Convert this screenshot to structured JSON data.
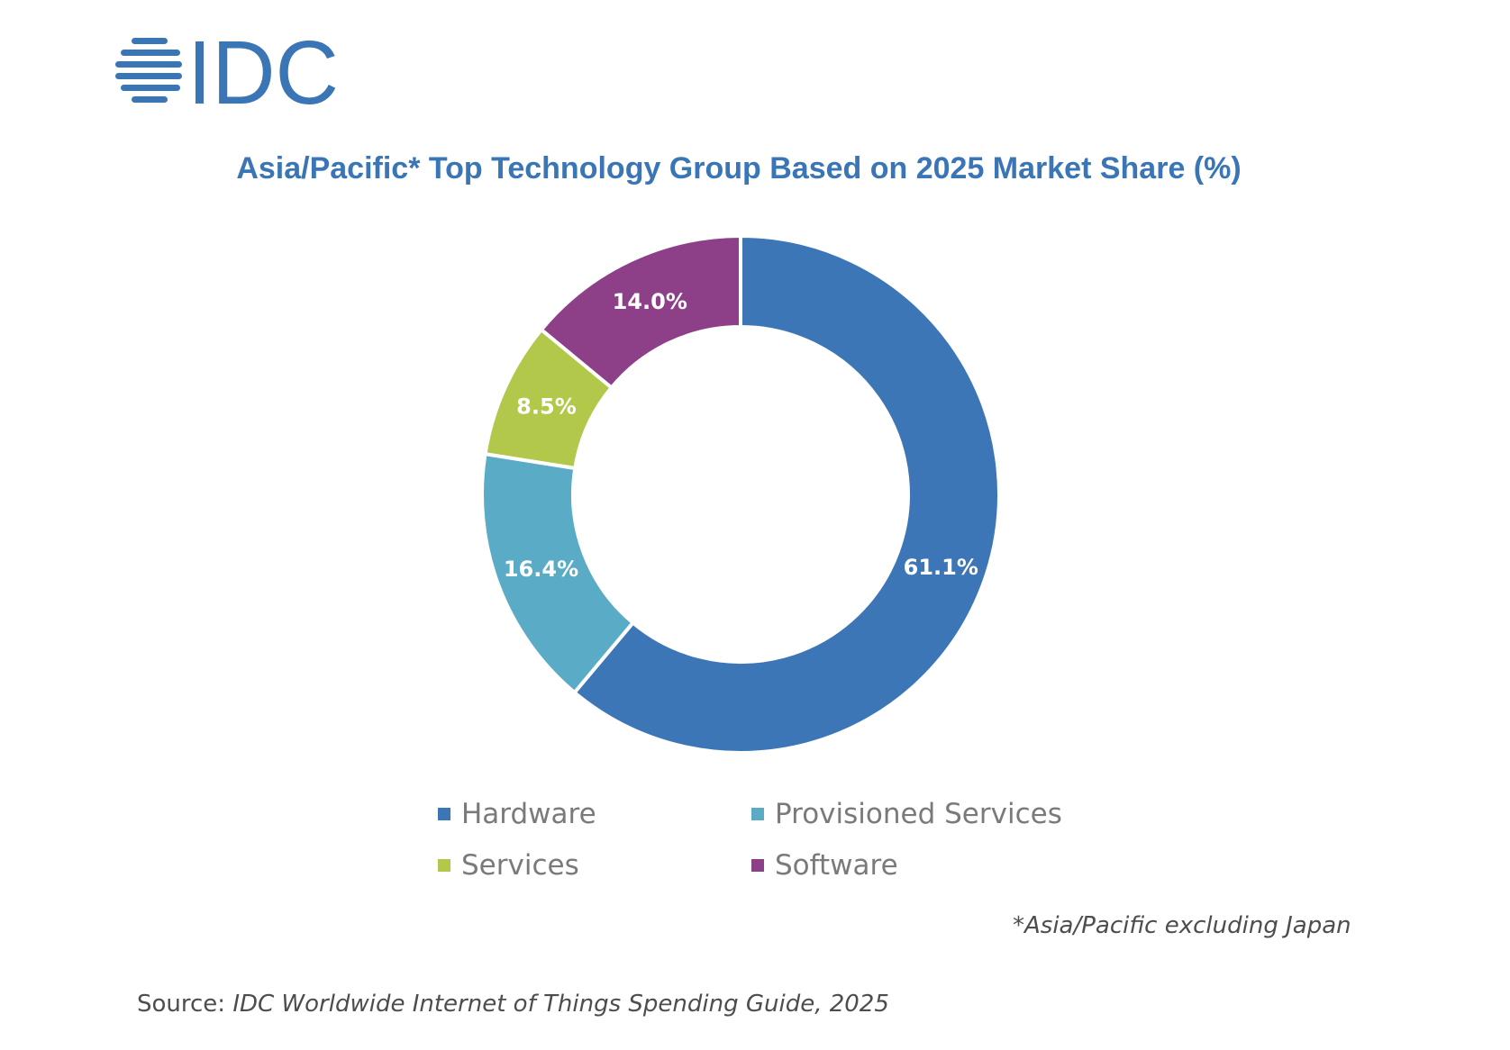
{
  "logo": {
    "text": "IDC",
    "color": "#3a75b5"
  },
  "chart_data": {
    "type": "pie",
    "variant": "donut",
    "title": "Asia/Pacific* Top Technology Group Based on 2025 Market Share (%)",
    "categories": [
      "Hardware",
      "Provisioned Services",
      "Services",
      "Software"
    ],
    "values": [
      61.1,
      16.4,
      8.5,
      14.0
    ],
    "labels": [
      "61.1%",
      "16.4%",
      "8.5%",
      "14.0%"
    ],
    "colors": [
      "#3d76b6",
      "#5aabc6",
      "#b2c84b",
      "#8d4088"
    ],
    "legend_position": "bottom",
    "unit": "%"
  },
  "footnote": "*Asia/Pacific excluding Japan",
  "source": {
    "prefix": "Source: ",
    "title": "IDC Worldwide Internet of Things Spending Guide, 2025"
  }
}
